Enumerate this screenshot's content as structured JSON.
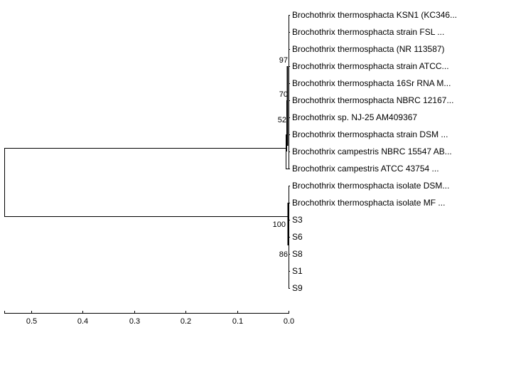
{
  "tree": {
    "leaves": [
      "Brochothrix thermosphacta KSN1 (KC346...",
      "Brochothrix thermosphacta strain FSL ...",
      "Brochothrix thermosphacta (NR 113587)",
      "Brochothrix thermosphacta strain ATCC...",
      "Brochothrix thermosphacta 16Sr RNA M...",
      "Brochothrix thermosphacta NBRC 12167...",
      "Brochothrix sp. NJ-25 AM409367",
      "Brochothrix thermosphacta strain DSM ...",
      "Brochothrix campestris NBRC 15547 AB...",
      "Brochothrix campestris ATCC 43754 ...",
      "Brochothrix thermosphacta isolate DSM...",
      "Brochothrix thermosphacta isolate MF ...",
      "S3",
      "S6",
      "S8",
      "S1",
      "S9"
    ],
    "bootstrap": [
      "97",
      "70",
      "52",
      "100",
      "86"
    ],
    "line_color": "#000000"
  },
  "scale_axis": {
    "ticks": [
      "0.5",
      "0.4",
      "0.3",
      "0.2",
      "0.1",
      "0.0"
    ],
    "tick_values": [
      0.5,
      0.4,
      0.3,
      0.2,
      0.1,
      0.0
    ]
  }
}
